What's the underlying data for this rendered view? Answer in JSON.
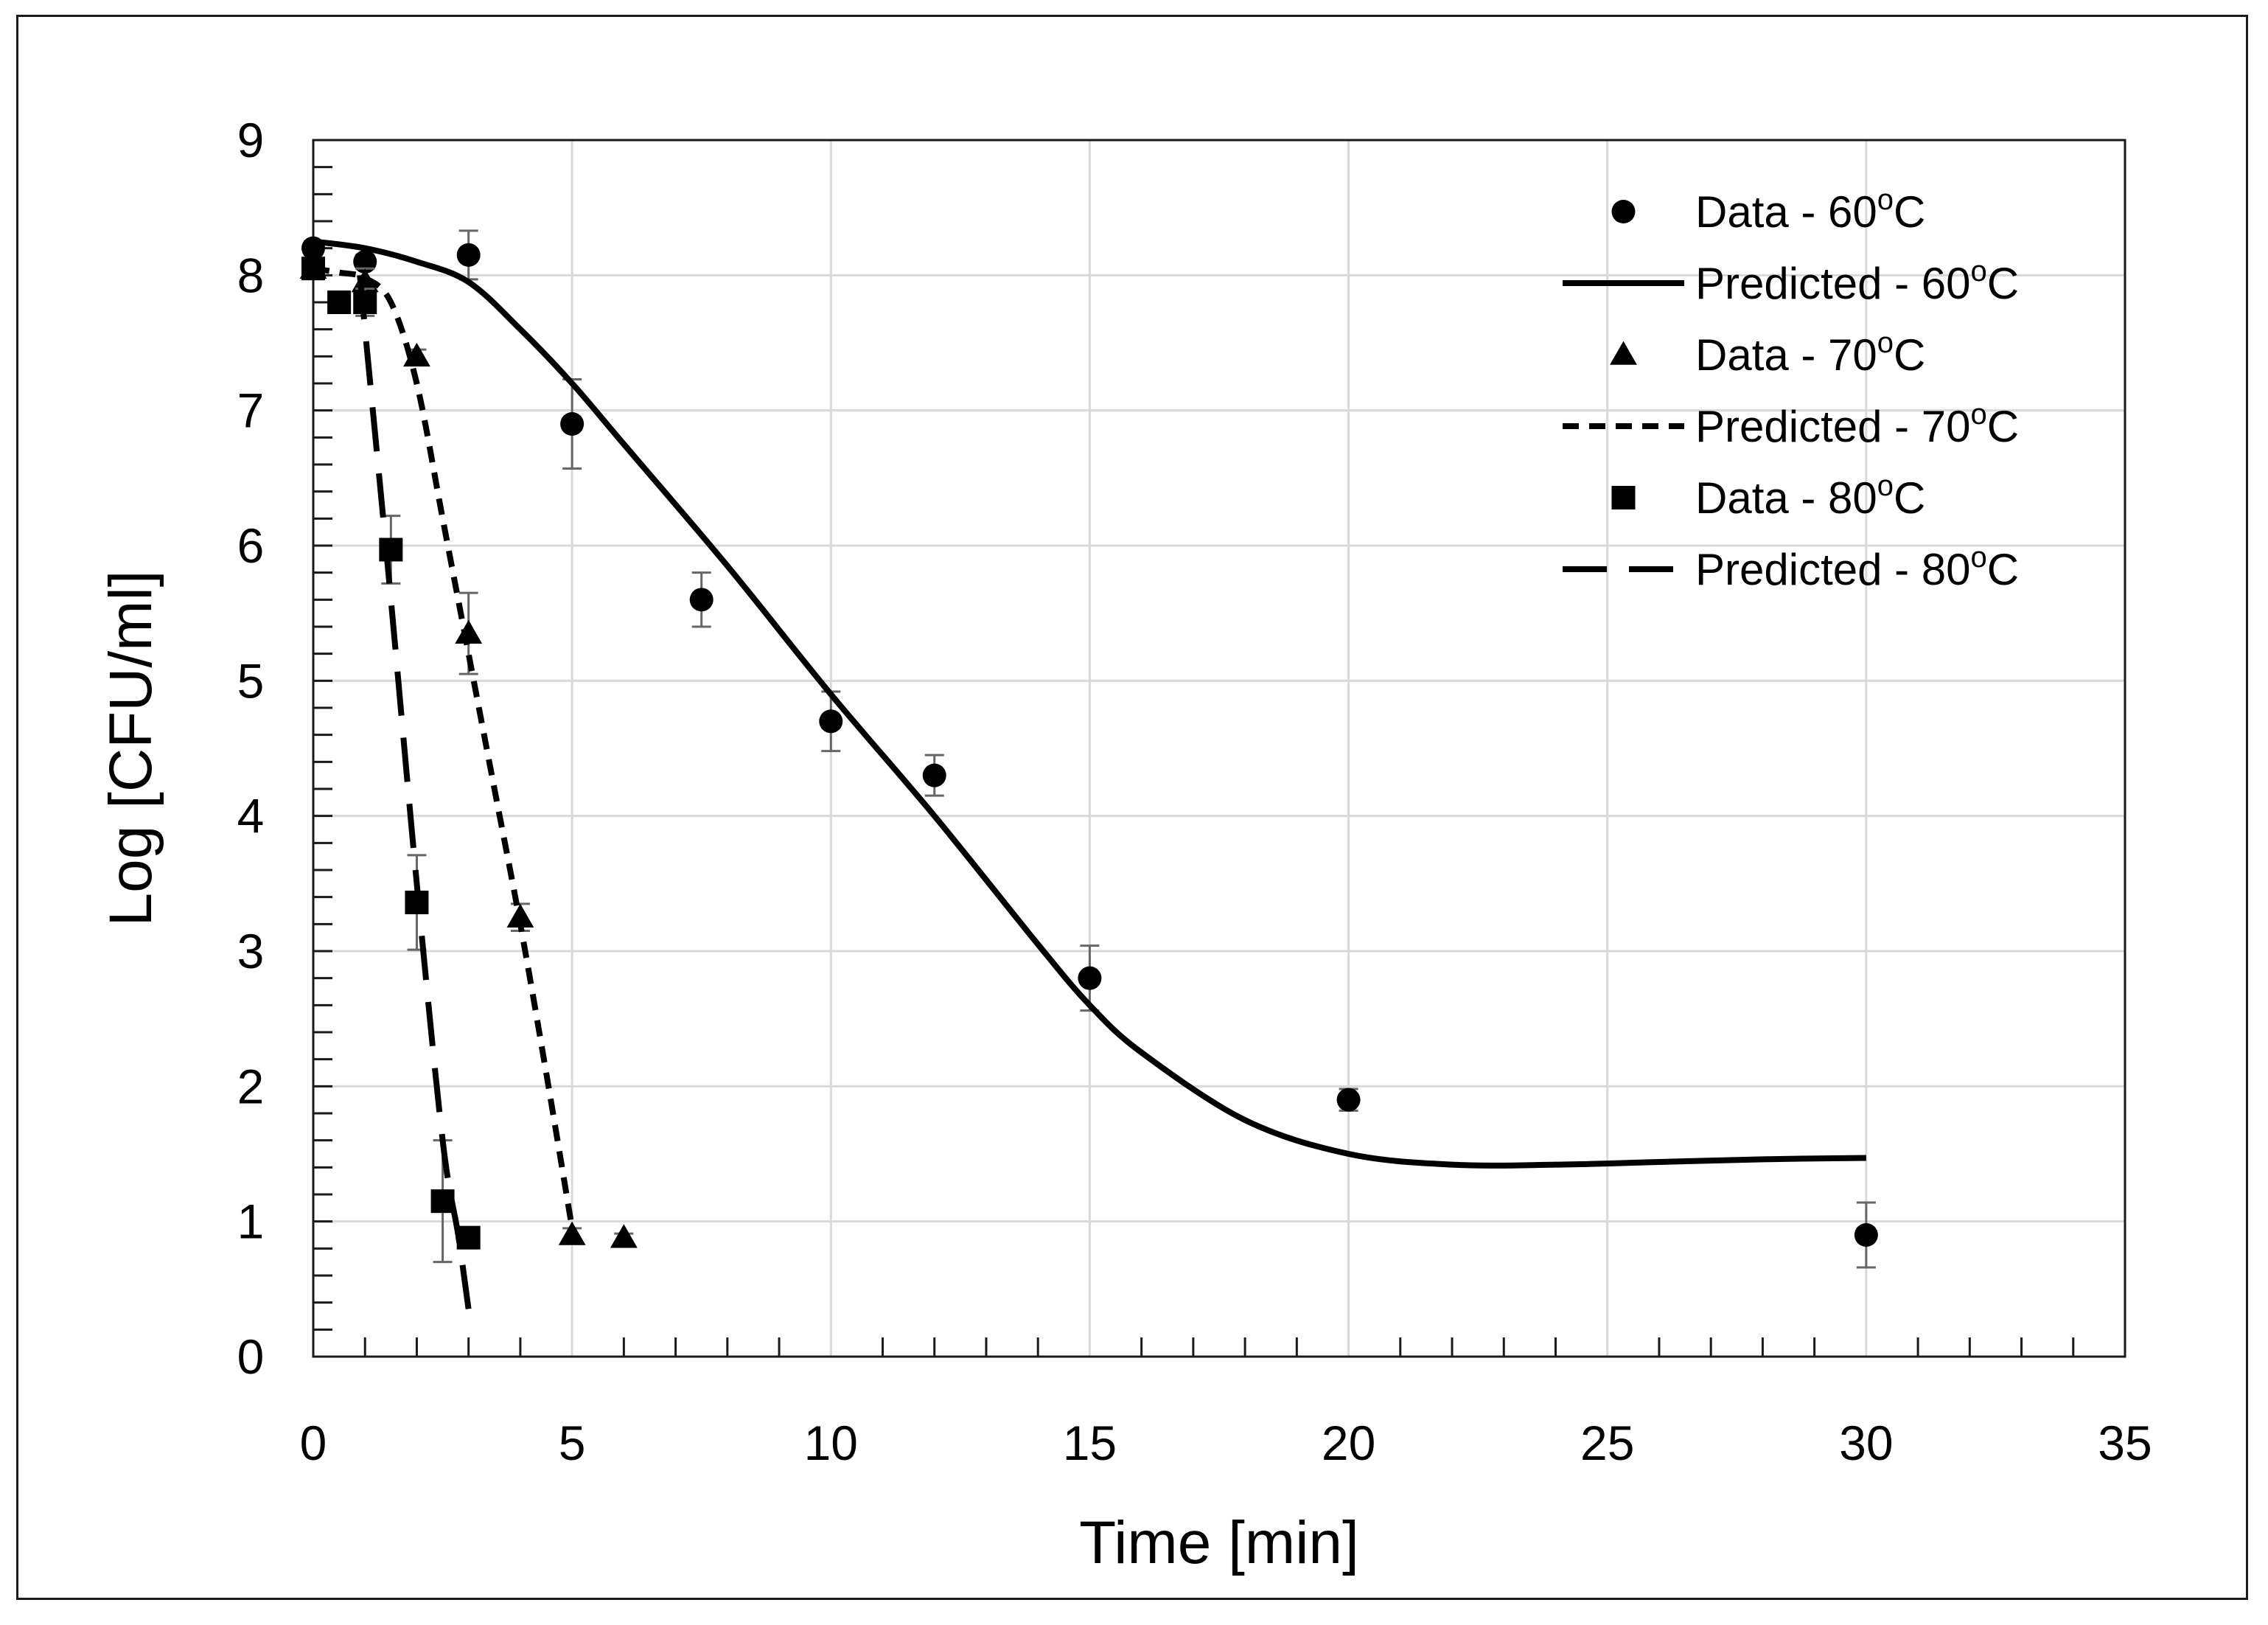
{
  "chart_data": {
    "type": "scatter",
    "title": "",
    "xlabel": "Time [min]",
    "ylabel": "Log [CFU/ml]",
    "xlim": [
      0,
      35
    ],
    "ylim": [
      0,
      9
    ],
    "xticks": [
      "0",
      "5",
      "10",
      "15",
      "20",
      "25",
      "30",
      "35"
    ],
    "yticks": [
      "0",
      "1",
      "2",
      "3",
      "4",
      "5",
      "6",
      "7",
      "8",
      "9"
    ],
    "grid": true,
    "legend_position": "top-right",
    "series": [
      {
        "name": "Data - 60oC",
        "label_main": "Data - 60",
        "label_sup": "o",
        "label_unit": "C",
        "kind": "points",
        "marker": "circle",
        "x": [
          0,
          1,
          3,
          5,
          7.5,
          10,
          12,
          15,
          20,
          30
        ],
        "y": [
          8.2,
          8.1,
          8.15,
          6.9,
          5.6,
          4.7,
          4.3,
          2.8,
          1.9,
          0.9
        ],
        "err": [
          0.05,
          0.05,
          0.18,
          0.33,
          0.2,
          0.22,
          0.15,
          0.24,
          0.08,
          0.24
        ]
      },
      {
        "name": "Predicted - 60oC",
        "label_main": "Predicted - 60",
        "label_sup": "o",
        "label_unit": "C",
        "kind": "line",
        "dash": "solid",
        "x": [
          0,
          1,
          2,
          3,
          4,
          5,
          6,
          8,
          10,
          12,
          14,
          15,
          16,
          18,
          20,
          22,
          24,
          26,
          28,
          30
        ],
        "y": [
          8.25,
          8.2,
          8.1,
          7.95,
          7.6,
          7.2,
          6.75,
          5.85,
          4.9,
          4.0,
          3.05,
          2.6,
          2.25,
          1.75,
          1.5,
          1.42,
          1.42,
          1.44,
          1.46,
          1.47
        ]
      },
      {
        "name": "Data - 70oC",
        "label_main": "Data - 70",
        "label_sup": "o",
        "label_unit": "C",
        "kind": "points",
        "marker": "triangle",
        "x": [
          0,
          1,
          2,
          3,
          4,
          5,
          6
        ],
        "y": [
          8.05,
          7.95,
          7.4,
          5.35,
          3.25,
          0.9,
          0.88
        ],
        "err": [
          0.05,
          0.1,
          0.05,
          0.3,
          0.1,
          0.05,
          0.03
        ]
      },
      {
        "name": "Predicted - 70oC",
        "label_main": "Predicted - 70",
        "label_sup": "o",
        "label_unit": "C",
        "kind": "line",
        "dash": "short",
        "x": [
          0,
          0.5,
          1,
          1.5,
          2,
          2.5,
          3,
          3.5,
          4,
          4.5,
          5
        ],
        "y": [
          8.05,
          8.02,
          7.98,
          7.8,
          7.2,
          6.2,
          5.2,
          4.2,
          3.2,
          2.1,
          0.95
        ]
      },
      {
        "name": "Data - 80oC",
        "label_main": "Data - 80",
        "label_sup": "o",
        "label_unit": "C",
        "kind": "points",
        "marker": "square",
        "x": [
          0,
          0.5,
          1,
          1.5,
          2,
          2.5,
          3
        ],
        "y": [
          8.05,
          7.8,
          7.8,
          5.97,
          3.36,
          1.15,
          0.88
        ],
        "err": [
          0.05,
          0.05,
          0.1,
          0.25,
          0.35,
          0.45,
          0.03
        ]
      },
      {
        "name": "Predicted - 80oC",
        "label_main": "Predicted - 80",
        "label_sup": "o",
        "label_unit": "C",
        "kind": "line",
        "dash": "long",
        "x": [
          0.9,
          1.0,
          1.5,
          2.0,
          2.5,
          2.8,
          3.0
        ],
        "y": [
          8.0,
          7.6,
          5.6,
          3.5,
          1.6,
          0.9,
          0.35
        ]
      }
    ]
  }
}
